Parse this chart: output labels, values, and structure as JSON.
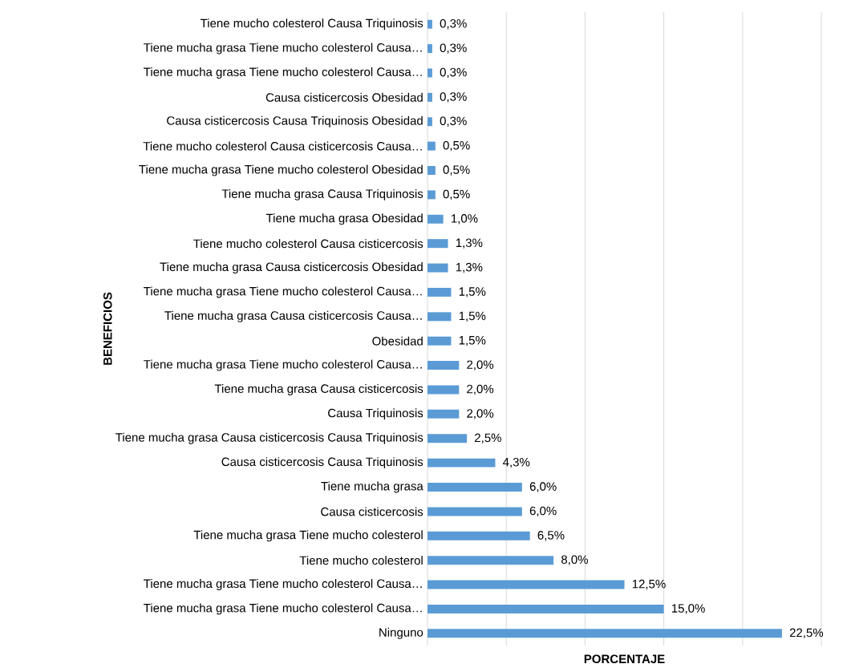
{
  "chart_data": {
    "type": "bar",
    "orientation": "horizontal",
    "xlabel": "PORCENTAJE",
    "ylabel": "BENEFICIOS",
    "categories": [
      "Tiene mucho colesterol Causa Triquinosis",
      "Tiene mucha grasa Tiene mucho colesterol Causa…",
      "Tiene mucha grasa Tiene mucho colesterol Causa…",
      "Causa cisticercosis Obesidad",
      "Causa cisticercosis Causa Triquinosis Obesidad",
      "Tiene mucho colesterol Causa cisticercosis Causa…",
      "Tiene mucha grasa Tiene mucho colesterol Obesidad",
      "Tiene mucha grasa Causa Triquinosis",
      "Tiene mucha grasa Obesidad",
      "Tiene mucho colesterol Causa cisticercosis",
      "Tiene mucha grasa Causa cisticercosis Obesidad",
      "Tiene mucha grasa Tiene mucho colesterol Causa…",
      "Tiene mucha grasa Causa cisticercosis Causa…",
      "Obesidad",
      "Tiene mucha grasa Tiene mucho colesterol Causa…",
      "Tiene mucha grasa Causa cisticercosis",
      "Causa Triquinosis",
      "Tiene mucha grasa Causa cisticercosis Causa Triquinosis",
      "Causa cisticercosis Causa Triquinosis",
      "Tiene mucha grasa",
      "Causa cisticercosis",
      "Tiene mucha grasa Tiene mucho colesterol",
      "Tiene mucho colesterol",
      "Tiene mucha grasa Tiene mucho colesterol Causa…",
      "Tiene mucha grasa Tiene mucho colesterol Causa…",
      "Ninguno"
    ],
    "values": [
      0.3,
      0.3,
      0.3,
      0.3,
      0.3,
      0.5,
      0.5,
      0.5,
      1.0,
      1.3,
      1.3,
      1.5,
      1.5,
      1.5,
      2.0,
      2.0,
      2.0,
      2.5,
      4.3,
      6.0,
      6.0,
      6.5,
      8.0,
      12.5,
      15.0,
      22.5
    ],
    "value_labels": [
      "0,3%",
      "0,3%",
      "0,3%",
      "0,3%",
      "0,3%",
      "0,5%",
      "0,5%",
      "0,5%",
      "1,0%",
      "1,3%",
      "1,3%",
      "1,5%",
      "1,5%",
      "1,5%",
      "2,0%",
      "2,0%",
      "2,0%",
      "2,5%",
      "4,3%",
      "6,0%",
      "6,0%",
      "6,5%",
      "8,0%",
      "12,5%",
      "15,0%",
      "22,5%"
    ],
    "color": "#5b9bd5",
    "xlim": [
      0,
      25
    ],
    "xticks": [
      {
        "value": 0,
        "label": null
      },
      {
        "value": 5,
        "label": null
      },
      {
        "value": 10,
        "label": null
      },
      {
        "value": 15,
        "label": null
      },
      {
        "value": 20,
        "label": null
      },
      {
        "value": 25,
        "label": null
      }
    ],
    "tick_labels": "y",
    "grid": "x"
  }
}
